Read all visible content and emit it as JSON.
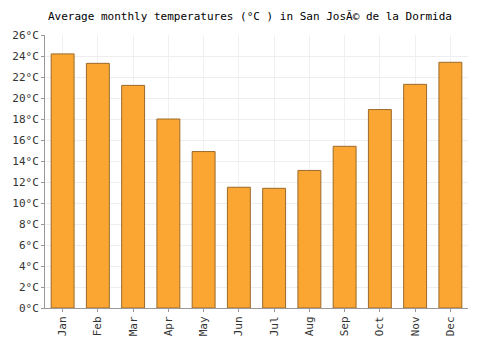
{
  "chart_data": {
    "type": "bar",
    "title": "Average monthly temperatures (°C ) in San JosÃ© de la Dormida",
    "categories": [
      "Jan",
      "Feb",
      "Mar",
      "Apr",
      "May",
      "Jun",
      "Jul",
      "Aug",
      "Sep",
      "Oct",
      "Nov",
      "Dec"
    ],
    "values": [
      24.2,
      23.3,
      21.2,
      18.0,
      14.9,
      11.5,
      11.4,
      13.1,
      15.4,
      18.9,
      21.3,
      23.4
    ],
    "color": "#fba632",
    "ylim": [
      0,
      26
    ],
    "yticks": [
      {
        "value": 0,
        "label": "0°C"
      },
      {
        "value": 2,
        "label": "2°C"
      },
      {
        "value": 4,
        "label": "4°C"
      },
      {
        "value": 6,
        "label": "6°C"
      },
      {
        "value": 8,
        "label": "8°C"
      },
      {
        "value": 10,
        "label": "10°C"
      },
      {
        "value": 12,
        "label": "12°C"
      },
      {
        "value": 14,
        "label": "14°C"
      },
      {
        "value": 16,
        "label": "16°C"
      },
      {
        "value": 18,
        "label": "18°C"
      },
      {
        "value": 20,
        "label": "20°C"
      },
      {
        "value": 22,
        "label": "22°C"
      },
      {
        "value": 24,
        "label": "24°C"
      },
      {
        "value": 26,
        "label": "26°C"
      }
    ],
    "grid": true
  }
}
